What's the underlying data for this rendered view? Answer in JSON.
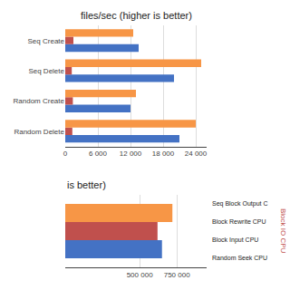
{
  "chart_data": [
    {
      "type": "bar",
      "orientation": "horizontal",
      "title": "files/sec (higher is better)",
      "categories": [
        "Random Delete",
        "Random Create",
        "Seq Delete",
        "Seq Create"
      ],
      "series": [
        {
          "color": "#4472C4",
          "values": [
            21000,
            12000,
            20000,
            13500
          ]
        },
        {
          "color": "#C0504D",
          "values": [
            1300,
            1400,
            1200,
            1500
          ]
        },
        {
          "color": "#F79646",
          "values": [
            24000,
            13000,
            25000,
            12500
          ]
        }
      ],
      "xlim": [
        0,
        26000
      ],
      "xticks": [
        0,
        {
          "value": 6000,
          "label": "6 000"
        },
        {
          "value": 12000,
          "label": "12 000"
        },
        {
          "value": 18000,
          "label": "18 000"
        },
        {
          "value": 24000,
          "label": "24 000"
        }
      ],
      "grid": true
    },
    {
      "type": "bar",
      "orientation": "horizontal",
      "title": "is better)",
      "categories": [
        null
      ],
      "series": [
        {
          "color": "#4472C4",
          "values": [
            650000
          ]
        },
        {
          "color": "#C0504D",
          "values": [
            620000
          ]
        },
        {
          "color": "#F79646",
          "values": [
            720000
          ]
        }
      ],
      "xlim": [
        0,
        950000
      ],
      "xticks": [
        {
          "value": 500000,
          "label": "500 000"
        },
        {
          "value": 750000,
          "label": "750 000"
        }
      ],
      "grid": true,
      "tick_labels": "x",
      "annotations": [
        "Seq Block Output C",
        "Block Rewrite CPU",
        "Block Input CPU",
        "Random Seek CPU"
      ],
      "ylabel": "Block IO CPU"
    }
  ]
}
